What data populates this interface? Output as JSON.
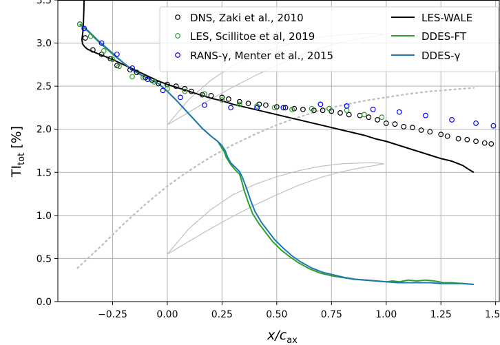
{
  "chart_data": {
    "type": "line",
    "xlabel": "x/c",
    "xlabel_sub": "ax",
    "ylabel": "TI",
    "ylabel_sub": "tot",
    "ylabel_unit": " [%]",
    "xlim": [
      -0.5,
      1.52
    ],
    "ylim": [
      0.0,
      3.5
    ],
    "grid": true,
    "legend_position": "top-right",
    "xticks": [
      -0.25,
      0.0,
      0.25,
      0.5,
      0.75,
      1.0,
      1.25,
      1.5
    ],
    "xtick_labels": [
      "−0.25",
      "0.00",
      "0.25",
      "0.50",
      "0.75",
      "1.00",
      "1.25",
      "1.50"
    ],
    "yticks": [
      0.0,
      0.5,
      1.0,
      1.5,
      2.0,
      2.5,
      3.0,
      3.5
    ],
    "ytick_labels": [
      "0.0",
      "0.5",
      "1.0",
      "1.5",
      "2.0",
      "2.5",
      "3.0",
      "3.5"
    ],
    "series": [
      {
        "name": "DNS, Zaki et al., 2010",
        "kind": "markers",
        "color": "#000000",
        "x": [
          -0.4,
          -0.375,
          -0.34,
          -0.3,
          -0.26,
          -0.23,
          -0.17,
          -0.14,
          -0.1,
          -0.07,
          -0.04,
          0.0,
          0.04,
          0.08,
          0.11,
          0.16,
          0.2,
          0.25,
          0.28,
          0.33,
          0.37,
          0.42,
          0.45,
          0.5,
          0.54,
          0.58,
          0.62,
          0.67,
          0.71,
          0.75,
          0.79,
          0.83,
          0.88,
          0.92,
          0.96,
          1.0,
          1.04,
          1.08,
          1.12,
          1.16,
          1.2,
          1.25,
          1.28,
          1.33,
          1.37,
          1.41,
          1.45,
          1.48
        ],
        "y": [
          3.22,
          3.06,
          2.92,
          2.87,
          2.82,
          2.74,
          2.69,
          2.66,
          2.6,
          2.57,
          2.53,
          2.52,
          2.5,
          2.47,
          2.44,
          2.4,
          2.39,
          2.37,
          2.35,
          2.32,
          2.3,
          2.29,
          2.28,
          2.26,
          2.25,
          2.24,
          2.23,
          2.22,
          2.22,
          2.21,
          2.19,
          2.17,
          2.16,
          2.14,
          2.11,
          2.07,
          2.06,
          2.03,
          2.02,
          1.99,
          1.97,
          1.94,
          1.92,
          1.89,
          1.88,
          1.86,
          1.84,
          1.83
        ]
      },
      {
        "name": "LES, Scillitoe et al, 2019",
        "kind": "markers",
        "color": "#2ca02c",
        "x": [
          -0.4,
          -0.35,
          -0.29,
          -0.25,
          -0.22,
          -0.16,
          -0.11,
          -0.06,
          0.0,
          0.08,
          0.17,
          0.25,
          0.33,
          0.41,
          0.49,
          0.57,
          0.66,
          0.74,
          0.82,
          0.9,
          0.98
        ],
        "y": [
          3.22,
          3.08,
          2.91,
          2.81,
          2.73,
          2.61,
          2.6,
          2.55,
          2.47,
          2.44,
          2.41,
          2.34,
          2.29,
          2.27,
          2.25,
          2.23,
          2.24,
          2.24,
          2.22,
          2.17,
          2.14
        ]
      },
      {
        "name": "RANS-γ, Menter et al., 2015",
        "kind": "markers",
        "color": "#0000ff",
        "x": [
          -0.38,
          -0.3,
          -0.23,
          -0.16,
          -0.09,
          -0.02,
          0.06,
          0.17,
          0.29,
          0.41,
          0.53,
          0.7,
          0.82,
          0.94,
          1.06,
          1.18,
          1.3,
          1.41,
          1.49
        ],
        "y": [
          3.17,
          3.0,
          2.87,
          2.71,
          2.58,
          2.45,
          2.37,
          2.28,
          2.25,
          2.25,
          2.25,
          2.29,
          2.27,
          2.23,
          2.2,
          2.16,
          2.11,
          2.07,
          2.04
        ]
      },
      {
        "name": "LES-WALE",
        "kind": "line",
        "color": "#000000",
        "x": [
          -0.38,
          -0.381,
          -0.383,
          -0.386,
          -0.39,
          -0.387,
          -0.378,
          -0.365,
          -0.34,
          -0.3,
          -0.25,
          -0.2,
          -0.15,
          -0.1,
          -0.05,
          0.0,
          0.05,
          0.1,
          0.15,
          0.2,
          0.25,
          0.3,
          0.35,
          0.4,
          0.45,
          0.5,
          0.55,
          0.6,
          0.65,
          0.7,
          0.75,
          0.8,
          0.85,
          0.9,
          0.95,
          1.0,
          1.05,
          1.1,
          1.15,
          1.2,
          1.25,
          1.3,
          1.35,
          1.38,
          1.4
        ],
        "y": [
          3.52,
          3.4,
          3.25,
          3.12,
          3.04,
          2.99,
          2.96,
          2.93,
          2.9,
          2.86,
          2.81,
          2.75,
          2.69,
          2.63,
          2.57,
          2.52,
          2.48,
          2.44,
          2.4,
          2.36,
          2.33,
          2.29,
          2.26,
          2.23,
          2.2,
          2.17,
          2.14,
          2.11,
          2.08,
          2.05,
          2.02,
          1.99,
          1.96,
          1.93,
          1.89,
          1.86,
          1.82,
          1.78,
          1.74,
          1.7,
          1.66,
          1.63,
          1.58,
          1.53,
          1.5
        ]
      },
      {
        "name": "DDES-FT",
        "kind": "line",
        "color": "#2ca02c",
        "x": [
          -0.4,
          -0.36,
          -0.32,
          -0.28,
          -0.24,
          -0.2,
          -0.16,
          -0.12,
          -0.08,
          -0.04,
          0.0,
          0.04,
          0.08,
          0.12,
          0.16,
          0.2,
          0.23,
          0.245,
          0.26,
          0.27,
          0.29,
          0.31,
          0.33,
          0.34,
          0.35,
          0.37,
          0.39,
          0.42,
          0.45,
          0.48,
          0.52,
          0.56,
          0.6,
          0.65,
          0.7,
          0.75,
          0.8,
          0.85,
          0.9,
          0.95,
          1.0,
          1.03,
          1.06,
          1.1,
          1.14,
          1.18,
          1.22,
          1.26,
          1.3,
          1.35,
          1.4
        ],
        "y": [
          3.22,
          3.13,
          3.03,
          2.94,
          2.85,
          2.77,
          2.69,
          2.63,
          2.58,
          2.53,
          2.44,
          2.34,
          2.23,
          2.12,
          2.01,
          1.92,
          1.86,
          1.8,
          1.74,
          1.67,
          1.59,
          1.53,
          1.48,
          1.4,
          1.3,
          1.15,
          1.02,
          0.9,
          0.8,
          0.7,
          0.6,
          0.52,
          0.45,
          0.38,
          0.33,
          0.3,
          0.28,
          0.26,
          0.25,
          0.24,
          0.23,
          0.24,
          0.23,
          0.25,
          0.24,
          0.25,
          0.24,
          0.22,
          0.22,
          0.21,
          0.2
        ]
      },
      {
        "name": "DDES-γ",
        "kind": "line",
        "color": "#1f77b4",
        "x": [
          -0.4,
          -0.36,
          -0.32,
          -0.28,
          -0.24,
          -0.2,
          -0.16,
          -0.12,
          -0.08,
          -0.04,
          0.0,
          0.04,
          0.08,
          0.12,
          0.16,
          0.2,
          0.23,
          0.25,
          0.265,
          0.275,
          0.29,
          0.31,
          0.33,
          0.345,
          0.36,
          0.38,
          0.4,
          0.43,
          0.46,
          0.49,
          0.53,
          0.57,
          0.61,
          0.66,
          0.71,
          0.76,
          0.81,
          0.86,
          0.91,
          0.96,
          1.0,
          1.05,
          1.1,
          1.15,
          1.2,
          1.25,
          1.3,
          1.35,
          1.4
        ],
        "y": [
          3.22,
          3.14,
          3.04,
          2.95,
          2.86,
          2.77,
          2.69,
          2.63,
          2.58,
          2.53,
          2.44,
          2.34,
          2.23,
          2.12,
          2.01,
          1.92,
          1.86,
          1.81,
          1.75,
          1.68,
          1.61,
          1.56,
          1.51,
          1.43,
          1.33,
          1.18,
          1.05,
          0.92,
          0.82,
          0.72,
          0.62,
          0.53,
          0.46,
          0.39,
          0.34,
          0.31,
          0.28,
          0.26,
          0.25,
          0.24,
          0.23,
          0.22,
          0.22,
          0.22,
          0.22,
          0.21,
          0.21,
          0.21,
          0.2
        ]
      }
    ],
    "background_outlines": {
      "color": "#c0c0c0",
      "profiles": [
        {
          "kind": "blade",
          "x": [
            0.0,
            0.1,
            0.2,
            0.3,
            0.4,
            0.5,
            0.6,
            0.7,
            0.8,
            0.9,
            0.95,
            0.99
          ],
          "y_upper": [
            2.05,
            2.35,
            2.57,
            2.74,
            2.86,
            2.95,
            3.02,
            3.07,
            3.1,
            3.11,
            3.11,
            3.1
          ],
          "y_lower": [
            2.05,
            2.2,
            2.35,
            2.49,
            2.62,
            2.74,
            2.85,
            2.94,
            3.01,
            3.06,
            3.08,
            3.1
          ]
        },
        {
          "kind": "blade",
          "x": [
            0.0,
            0.1,
            0.2,
            0.3,
            0.4,
            0.5,
            0.6,
            0.7,
            0.8,
            0.9,
            0.95,
            0.99
          ],
          "y_upper": [
            0.55,
            0.85,
            1.07,
            1.24,
            1.36,
            1.45,
            1.52,
            1.57,
            1.6,
            1.61,
            1.61,
            1.6
          ],
          "y_lower": [
            0.55,
            0.7,
            0.85,
            0.99,
            1.12,
            1.24,
            1.35,
            1.44,
            1.51,
            1.56,
            1.58,
            1.6
          ]
        },
        {
          "kind": "dotted",
          "x": [
            -0.41,
            -0.3,
            -0.2,
            -0.1,
            0.0,
            0.1,
            0.2,
            0.3,
            0.4,
            0.5,
            0.6,
            0.7,
            0.8,
            0.9,
            1.0,
            1.1,
            1.2,
            1.3,
            1.4
          ],
          "y": [
            0.39,
            0.65,
            0.9,
            1.13,
            1.34,
            1.52,
            1.68,
            1.82,
            1.94,
            2.05,
            2.14,
            2.22,
            2.28,
            2.33,
            2.37,
            2.41,
            2.44,
            2.46,
            2.48
          ]
        }
      ]
    }
  }
}
